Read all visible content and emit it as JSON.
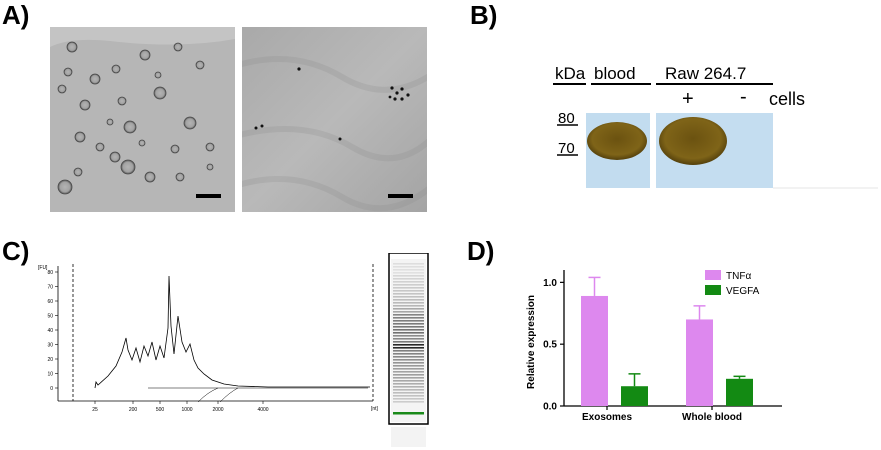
{
  "figure": {
    "panel_labels": {
      "a": "A)",
      "b": "B)",
      "c": "C)",
      "d": "D)"
    }
  },
  "panel_b": {
    "header_kda": "kDa",
    "header_blood": "blood",
    "header_raw": "Raw 264.7",
    "sign_plus": "+",
    "sign_minus": "-",
    "label_cells": "cells",
    "marker_80": "80",
    "marker_70": "70"
  },
  "panel_c": {
    "y_unit": "[FU]",
    "y_ticks": [
      "80",
      "70",
      "60",
      "50",
      "40",
      "30",
      "20",
      "10",
      "0"
    ],
    "x_ticks": [
      "25",
      "200",
      "500",
      "1000",
      "2000",
      "4000"
    ],
    "x_unit": "[nt]",
    "colors": {
      "trace": "#000000",
      "marker_band": "#1a8a1a"
    }
  },
  "chart_data": {
    "type": "bar",
    "ylabel": "Relative expression",
    "categories": [
      "Exosomes",
      "Whole blood"
    ],
    "y_ticks": [
      "0.0",
      "0.5",
      "1.0"
    ],
    "ylim": [
      0,
      1.1
    ],
    "legend_position": "top-right",
    "series": [
      {
        "name": "TNFα",
        "color": "#dd88ee",
        "values": [
          0.89,
          0.7
        ],
        "errors": [
          0.15,
          0.11
        ]
      },
      {
        "name": "VEGFA",
        "color": "#138a13",
        "values": [
          0.16,
          0.22
        ],
        "errors": [
          0.1,
          0.02
        ]
      }
    ]
  }
}
